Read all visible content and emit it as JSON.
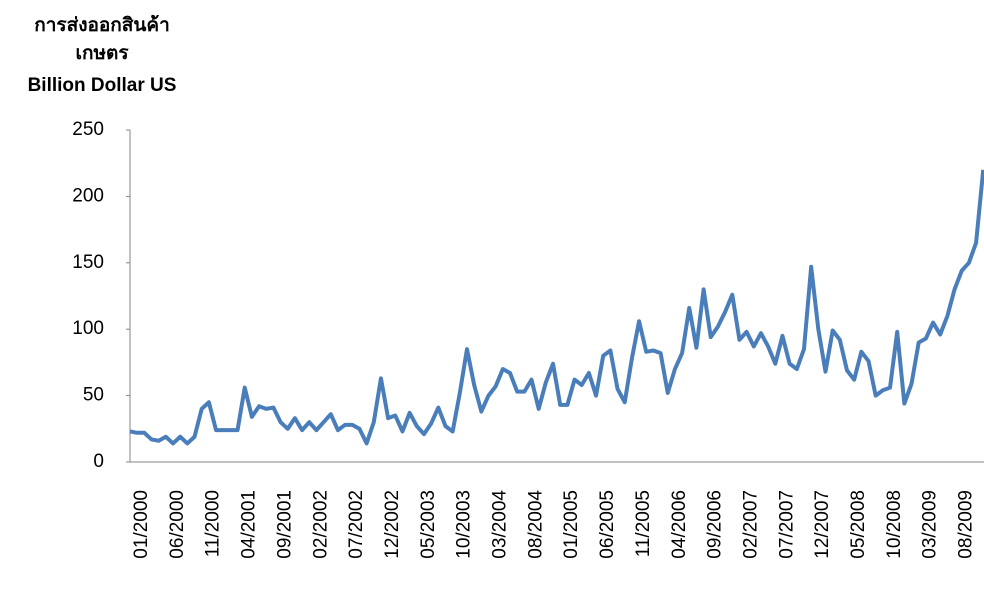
{
  "chart_data": {
    "type": "line",
    "title": [
      "การส่งออกสินค้า",
      "เกษตร"
    ],
    "ylabel": "Billion Dollar US",
    "categories": [
      "01/2000",
      null,
      null,
      null,
      null,
      "06/2000",
      null,
      null,
      null,
      null,
      "11/2000",
      null,
      null,
      null,
      null,
      "04/2001",
      null,
      null,
      null,
      null,
      "09/2001",
      null,
      null,
      null,
      null,
      "02/2002",
      null,
      null,
      null,
      null,
      "07/2002",
      null,
      null,
      null,
      null,
      "12/2002",
      null,
      null,
      null,
      null,
      "05/2003",
      null,
      null,
      null,
      null,
      "10/2003",
      null,
      null,
      null,
      null,
      "03/2004",
      null,
      null,
      null,
      null,
      "08/2004",
      null,
      null,
      null,
      null,
      "01/2005",
      null,
      null,
      null,
      null,
      "06/2005",
      null,
      null,
      null,
      null,
      "11/2005",
      null,
      null,
      null,
      null,
      "04/2006",
      null,
      null,
      null,
      null,
      "09/2006",
      null,
      null,
      null,
      null,
      "02/2007",
      null,
      null,
      null,
      null,
      "07/2007",
      null,
      null,
      null,
      null,
      "12/2007",
      null,
      null,
      null,
      null,
      "05/2008",
      null,
      null,
      null,
      null,
      "10/2008",
      null,
      null,
      null,
      null,
      "03/2009",
      null,
      null,
      null,
      null,
      "08/2009",
      null,
      null,
      null,
      null
    ],
    "series": [
      {
        "name": "Billion Dollar US",
        "color": "#4a7ebb",
        "values": [
          23,
          22,
          22,
          17,
          16,
          19,
          14,
          19,
          14,
          19,
          40,
          45,
          24,
          24,
          24,
          24,
          56,
          34,
          42,
          40,
          41,
          30,
          25,
          33,
          24,
          30,
          24,
          30,
          36,
          24,
          28,
          28,
          25,
          14,
          30,
          63,
          33,
          35,
          23,
          37,
          27,
          21,
          29,
          41,
          27,
          23,
          52,
          85,
          58,
          38,
          50,
          57,
          70,
          67,
          53,
          53,
          62,
          40,
          60,
          74,
          43,
          43,
          62,
          58,
          67,
          50,
          80,
          84,
          55,
          45,
          78,
          106,
          83,
          84,
          82,
          52,
          70,
          82,
          116,
          86,
          130,
          94,
          102,
          113,
          126,
          92,
          98,
          87,
          97,
          87,
          74,
          95,
          74,
          70,
          85,
          147,
          100,
          68,
          99,
          92,
          69,
          62,
          83,
          76,
          50,
          54,
          56,
          98,
          44,
          59,
          90,
          93,
          105,
          96,
          110,
          130,
          144,
          150,
          165,
          220
        ]
      }
    ],
    "ylim": [
      0,
      250
    ],
    "yticks": [
      0,
      50,
      100,
      150,
      200,
      250
    ],
    "grid": false
  }
}
